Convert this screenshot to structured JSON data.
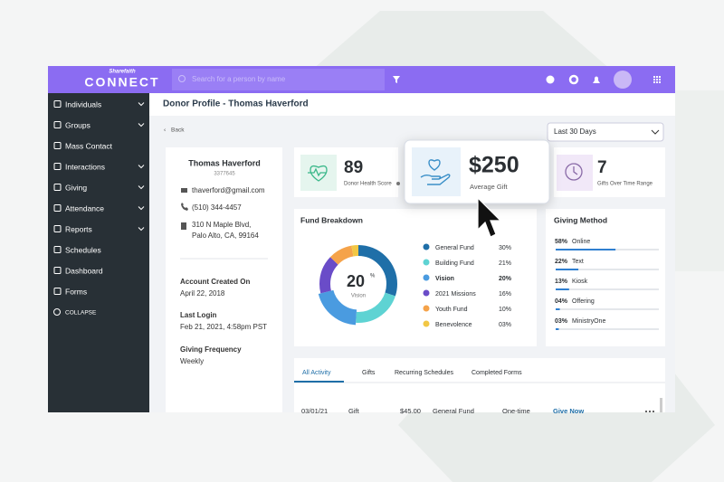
{
  "brand": {
    "small": "Sharefaith",
    "name": "CONNECT"
  },
  "topbar": {
    "search_placeholder": "Search for a person by name"
  },
  "sidebar": {
    "items": [
      {
        "label": "Individuals",
        "expandable": true
      },
      {
        "label": "Groups",
        "expandable": true
      },
      {
        "label": "Mass Contact",
        "expandable": false
      },
      {
        "label": "Interactions",
        "expandable": true
      },
      {
        "label": "Giving",
        "expandable": true
      },
      {
        "label": "Attendance",
        "expandable": true
      },
      {
        "label": "Reports",
        "expandable": true
      },
      {
        "label": "Schedules",
        "expandable": false
      },
      {
        "label": "Dashboard",
        "expandable": false
      },
      {
        "label": "Forms",
        "expandable": false
      }
    ],
    "collapse": "COLLAPSE"
  },
  "header": {
    "title": "Donor Profile - Thomas Haverford"
  },
  "toolbar": {
    "back": "Back",
    "date_range": "Last 30 Days"
  },
  "profile": {
    "name": "Thomas Haverford",
    "id": "3377645",
    "email": "thaverford@gmail.com",
    "phone": "(510) 344-4457",
    "address": [
      "310 N Maple Blvd,",
      "Palo Alto, CA, 99164"
    ],
    "details": [
      {
        "label": "Account Created On",
        "value": "April 22, 2018"
      },
      {
        "label": "Last Login",
        "value": "Feb 21, 2021, 4:58pm PST"
      },
      {
        "label": "Giving Frequency",
        "value": "Weekly"
      }
    ]
  },
  "stats": [
    {
      "value": "89",
      "label": "Donor Health Score"
    },
    {
      "value": "$250",
      "label": "Average Gift"
    },
    {
      "value": "7",
      "label": "Gifts Over Time Range"
    }
  ],
  "fund_breakdown": {
    "title": "Fund Breakdown",
    "center_value": "20",
    "center_unit": "%",
    "center_label": "Vision",
    "funds": [
      {
        "name": "General Fund",
        "value": 30,
        "value_label": "30%",
        "color": "#1f6fa8"
      },
      {
        "name": "Building Fund",
        "value": 21,
        "value_label": "21%",
        "color": "#5ed3d3"
      },
      {
        "name": "Vision",
        "value": 20,
        "value_label": "20%",
        "color": "#4a9be0"
      },
      {
        "name": "2021 Missions",
        "value": 16,
        "value_label": "16%",
        "color": "#6a4cc8"
      },
      {
        "name": "Youth Fund",
        "value": 10,
        "value_label": "10%",
        "color": "#f5a34a"
      },
      {
        "name": "Benevolence",
        "value": 3,
        "value_label": "03%",
        "color": "#f2c744"
      }
    ]
  },
  "giving_method": {
    "title": "Giving Method",
    "color": "#2f7fd0",
    "methods": [
      {
        "name": "Online",
        "value": 58,
        "value_label": "58%"
      },
      {
        "name": "Text",
        "value": 22,
        "value_label": "22%"
      },
      {
        "name": "Kiosk",
        "value": 13,
        "value_label": "13%"
      },
      {
        "name": "Offering",
        "value": 4,
        "value_label": "04%"
      },
      {
        "name": "MinistryOne",
        "value": 3,
        "value_label": "03%"
      }
    ]
  },
  "activity": {
    "tabs": [
      "All Activity",
      "Gifts",
      "Recurring Schedules",
      "Completed Forms"
    ],
    "row": [
      "03/01/21",
      "Gift",
      "$45.00",
      "General Fund",
      "One-time",
      "Give Now"
    ]
  }
}
